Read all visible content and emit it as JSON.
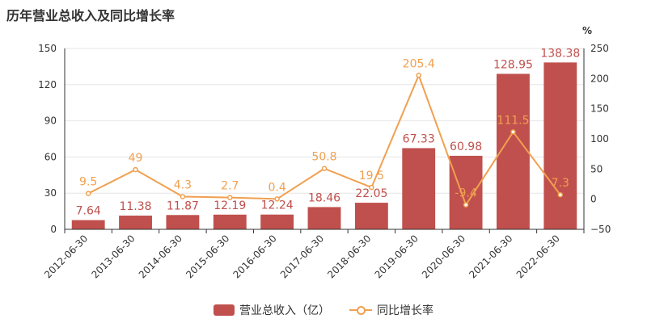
{
  "title": "历年营业总收入及同比增长率",
  "chart_data": {
    "type": "bar",
    "categories": [
      "2012-06-30",
      "2013-06-30",
      "2014-06-30",
      "2015-06-30",
      "2016-06-30",
      "2017-06-30",
      "2018-06-30",
      "2019-06-30",
      "2020-06-30",
      "2021-06-30",
      "2022-06-30"
    ],
    "series": [
      {
        "name": "营业总收入（亿）",
        "type": "bar",
        "axis": "left",
        "color": "#c0504d",
        "values": [
          7.64,
          11.38,
          11.87,
          12.19,
          12.24,
          18.46,
          22.05,
          67.33,
          60.98,
          128.95,
          138.38
        ],
        "labels": [
          "7.64",
          "11.38",
          "11.87",
          "12.19",
          "12.24",
          "18.46",
          "22.05",
          "67.33",
          "60.98",
          "128.95",
          "138.38"
        ]
      },
      {
        "name": "同比增长率",
        "type": "line",
        "axis": "right",
        "color": "#f0a050",
        "values": [
          9.5,
          49,
          4.3,
          2.7,
          0.4,
          50.8,
          19.5,
          205.4,
          -9.4,
          111.5,
          7.3
        ],
        "labels": [
          "9.5",
          "49",
          "4.3",
          "2.7",
          "0.4",
          "50.8",
          "19.5",
          "205.4",
          "-9.4",
          "111.5",
          "7.3"
        ]
      }
    ],
    "y_left": {
      "ylim": [
        0,
        150
      ],
      "ticks": [
        "0",
        "30",
        "60",
        "90",
        "120",
        "150"
      ]
    },
    "y_right": {
      "unit": "%",
      "ylim": [
        -50,
        250
      ],
      "ticks": [
        "−50",
        "0",
        "50",
        "100",
        "150",
        "200",
        "250"
      ]
    },
    "grid": true,
    "legend_position": "bottom-center"
  },
  "legend": {
    "bar_label": "营业总收入（亿）",
    "line_label": "同比增长率",
    "bar_color": "#c0504d",
    "line_color": "#f0a050"
  }
}
